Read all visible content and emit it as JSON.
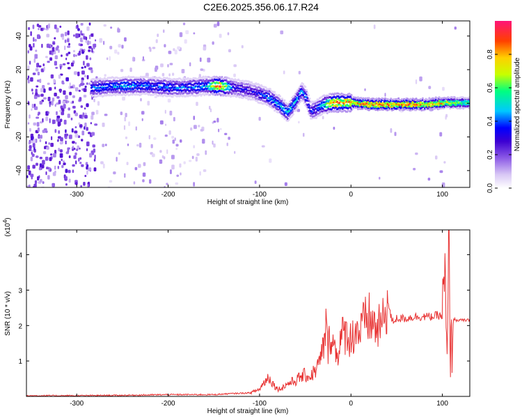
{
  "figure": {
    "title": "C2E6.2025.356.06.17.R24"
  },
  "colors": {
    "snr_line": "#e83232",
    "frame": "#000000",
    "colormap": [
      "#ffffff",
      "#d9c8f5",
      "#8c5ae6",
      "#5a14d2",
      "#0000ff",
      "#00c8ff",
      "#00ff7f",
      "#c8ff00",
      "#ffd000",
      "#ff4000",
      "#ff1478"
    ]
  },
  "chart_data": [
    {
      "type": "heatmap",
      "title": "",
      "xlabel": "Height of straight line (km)",
      "ylabel": "Frequency (Hz)",
      "xlim": [
        -355,
        130
      ],
      "ylim": [
        -50,
        49
      ],
      "xticks": [
        -300,
        -200,
        -100,
        0,
        100
      ],
      "yticks": [
        -40,
        -20,
        0,
        20,
        40
      ],
      "grid": false,
      "colorbar": {
        "label": "Normalized spectral amplitude",
        "range": [
          0,
          1
        ],
        "ticks": [
          0.0,
          0.2,
          0.4,
          0.6,
          0.8
        ]
      },
      "ridge": {
        "x": [
          -280,
          -250,
          -220,
          -200,
          -180,
          -160,
          -145,
          -130,
          -110,
          -100,
          -90,
          -80,
          -70,
          -60,
          -55,
          -50,
          -45,
          -40,
          -30,
          -20,
          0,
          20,
          50,
          80,
          100,
          110,
          130
        ],
        "freq": [
          10,
          11,
          11,
          10,
          10,
          11,
          11,
          10,
          8,
          6,
          4,
          0,
          -5,
          3,
          8,
          4,
          -4,
          -3,
          0,
          1,
          1,
          0,
          0,
          0,
          1,
          1,
          1
        ],
        "amplitude": [
          0.45,
          0.5,
          0.45,
          0.45,
          0.45,
          0.5,
          0.95,
          0.4,
          0.35,
          0.4,
          0.5,
          0.5,
          0.55,
          0.5,
          0.45,
          0.45,
          0.4,
          0.4,
          0.6,
          0.9,
          0.85,
          0.9,
          0.9,
          0.85,
          0.8,
          0.7,
          0.65
        ]
      }
    },
    {
      "type": "line",
      "title": "",
      "xlabel": "Height of straight line (km)",
      "ylabel": "SNR (10 * v/v)",
      "y_multiplier": "(x10",
      "y_multiplier_exp": "4",
      "y_multiplier_close": ")",
      "xlim": [
        -355,
        130
      ],
      "ylim": [
        0,
        4.7
      ],
      "xticks": [
        -300,
        -200,
        -100,
        0,
        100
      ],
      "yticks": [
        1,
        2,
        3,
        4
      ],
      "grid": false,
      "series": [
        {
          "name": "",
          "x": [
            -355,
            -300,
            -250,
            -200,
            -150,
            -130,
            -110,
            -100,
            -95,
            -90,
            -85,
            -80,
            -75,
            -70,
            -65,
            -60,
            -55,
            -50,
            -45,
            -40,
            -35,
            -30,
            -27,
            -25,
            -22,
            -20,
            -15,
            -10,
            -5,
            0,
            5,
            10,
            15,
            20,
            25,
            30,
            35,
            40,
            45,
            50,
            60,
            70,
            80,
            90,
            95,
            100,
            103,
            105,
            107,
            109,
            112,
            115,
            120,
            130
          ],
          "y": [
            0.02,
            0.02,
            0.03,
            0.05,
            0.05,
            0.08,
            0.1,
            0.2,
            0.4,
            0.55,
            0.35,
            0.2,
            0.25,
            0.35,
            0.4,
            0.45,
            0.55,
            0.6,
            0.55,
            0.7,
            0.9,
            1.4,
            2.0,
            1.3,
            1.9,
            1.5,
            1.2,
            1.7,
            1.8,
            1.6,
            1.9,
            1.8,
            2.1,
            2.2,
            2.0,
            1.9,
            2.1,
            2.7,
            2.1,
            2.2,
            2.2,
            2.25,
            2.25,
            2.25,
            2.3,
            2.25,
            3.5,
            0.3,
            4.6,
            1.0,
            2.2,
            2.15,
            2.15,
            2.15
          ]
        }
      ]
    }
  ]
}
